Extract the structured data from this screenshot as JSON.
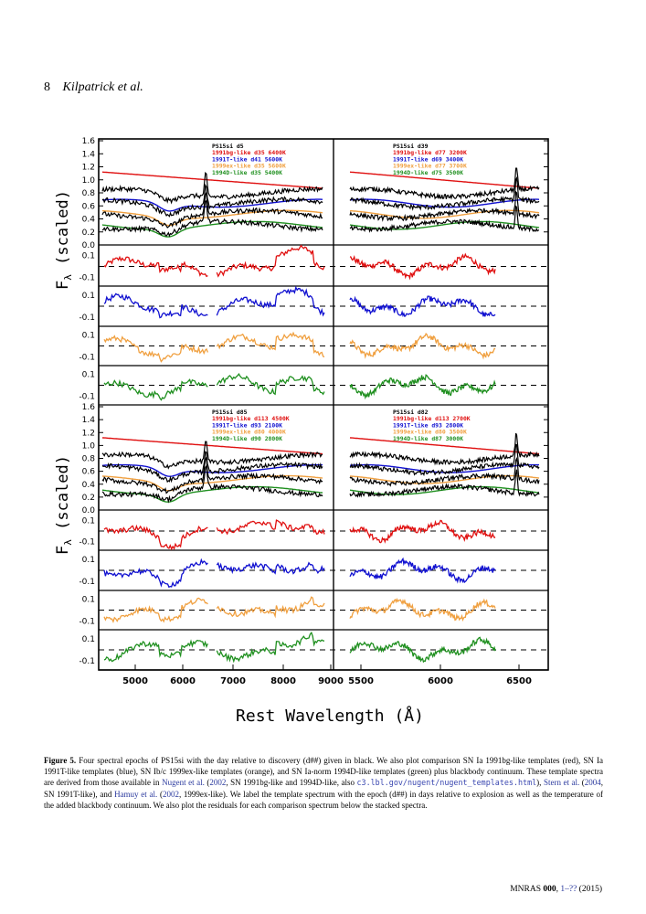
{
  "page": {
    "number": "8",
    "authors": "Kilpatrick et al."
  },
  "figure": {
    "ylabel_flux": "F",
    "ylabel_sub": "λ",
    "ylabel_tail": " (scaled)",
    "xlabel": "Rest Wavelength (Å)",
    "y_ticks_stack": [
      "1.6",
      "1.4",
      "1.2",
      "1.0",
      "0.8",
      "0.6",
      "0.4",
      "0.2",
      "0.0"
    ],
    "y_ticks_resid": [
      "0.1",
      "-0.1"
    ],
    "x_ticks_left": [
      "5000",
      "6000",
      "7000",
      "8000",
      "9000"
    ],
    "x_ticks_right": [
      "5500",
      "6000",
      "6500"
    ],
    "colors": {
      "observed": "#000000",
      "1991bg": "#e01010",
      "1991T": "#1010d0",
      "1999ex": "#f0a040",
      "1994D": "#209020"
    },
    "panels": [
      {
        "id": "d5",
        "legend": [
          "PS15si d5",
          "1991bg-like d35 6400K",
          "1991T-like d41 5600K",
          "1999ex-like d35 5600K",
          "1994D-like d35 5400K"
        ]
      },
      {
        "id": "d39",
        "legend": [
          "PS15si d39",
          "1991bg-like d77 3200K",
          "1991T-like d69 3400K",
          "1999ex-like d77 3700K",
          "1994D-like d75 3500K"
        ]
      },
      {
        "id": "d85",
        "legend": [
          "PS15si d85",
          "1991bg-like d113 4500K",
          "1991T-like d93 2100K",
          "1999ex-like d80 4000K",
          "1994D-like d90 2800K"
        ]
      },
      {
        "id": "d82",
        "legend": [
          "PS15si d82",
          "1991bg-like d113 2700K",
          "1991T-like d93 2800K",
          "1999ex-like d80 3500K",
          "1994D-like d87 3000K"
        ]
      }
    ]
  },
  "caption": {
    "label": "Figure 5.",
    "p1": " Four spectral epochs of PS15si with the day relative to discovery (d##) given in black. We also plot comparison SN Ia 1991bg-like templates (red), SN Ia 1991T-like templates (blue), SN Ib/c 1999ex-like templates (orange), and SN Ia-norm 1994D-like templates (green) plus blackbody continuum. These template spectra are derived from those available in ",
    "ref1": "Nugent et al.",
    "p2": " (",
    "ref1y": "2002",
    "p3": ", SN 1991bg-like and 1994D-like, also ",
    "url": "c3.lbl.gov/nugent/nugent_templates.html",
    "p4": "), ",
    "ref2": "Stern et al.",
    "p5": " (",
    "ref2y": "2004",
    "p6": ", SN 1991T-like), and ",
    "ref3": "Hamuy et al.",
    "p7": " (",
    "ref3y": "2002",
    "p8": ", 1999ex-like). We label the template spectrum with the epoch (d##) in days relative to explosion as well as the temperature of the added blackbody continuum. We also plot the residuals for each comparison spectrum below the stacked spectra."
  },
  "footer": {
    "journal": "MNRAS ",
    "volume": "000",
    "pages_pre": ", ",
    "pages": "1–??",
    "year": " (2015)"
  }
}
